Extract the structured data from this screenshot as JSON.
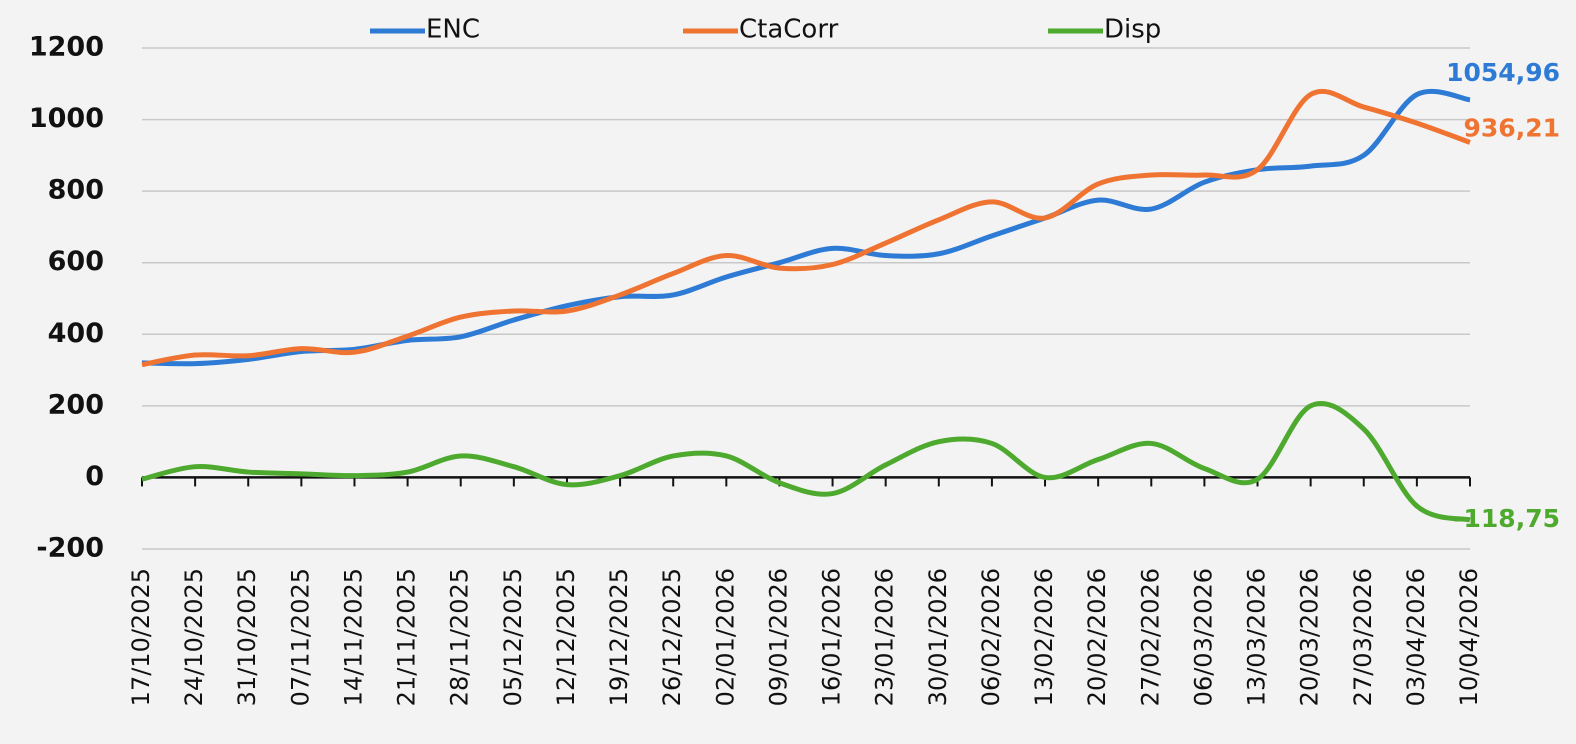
{
  "chart_data": {
    "type": "line",
    "categories": [
      "17/10/2025",
      "24/10/2025",
      "31/10/2025",
      "07/11/2025",
      "14/11/2025",
      "21/11/2025",
      "28/11/2025",
      "05/12/2025",
      "12/12/2025",
      "19/12/2025",
      "26/12/2025",
      "02/01/2026",
      "09/01/2026",
      "16/01/2026",
      "23/01/2026",
      "30/01/2026",
      "06/02/2026",
      "13/02/2026",
      "20/02/2026",
      "27/02/2026",
      "06/03/2026",
      "13/03/2026",
      "20/03/2026",
      "27/03/2026",
      "03/04/2026",
      "10/04/2026"
    ],
    "series": [
      {
        "name": "ENC",
        "color": "#2e7bd6",
        "values": [
          320,
          318,
          330,
          352,
          358,
          383,
          393,
          440,
          480,
          505,
          510,
          560,
          600,
          640,
          620,
          625,
          675,
          725,
          775,
          750,
          825,
          860,
          870,
          900,
          1070,
          1054.96
        ],
        "value_labels": [
          null,
          null,
          null,
          null,
          null,
          null,
          null,
          null,
          null,
          null,
          null,
          null,
          null,
          null,
          null,
          null,
          null,
          null,
          null,
          null,
          null,
          null,
          null,
          null,
          null,
          "1054,96"
        ]
      },
      {
        "name": "CtaCorr",
        "color": "#ef7432",
        "values": [
          315,
          342,
          340,
          360,
          350,
          395,
          448,
          465,
          465,
          510,
          570,
          620,
          585,
          595,
          655,
          720,
          770,
          725,
          820,
          845,
          845,
          860,
          1070,
          1035,
          990,
          936.21
        ],
        "value_labels": [
          null,
          null,
          null,
          null,
          null,
          null,
          null,
          null,
          null,
          null,
          null,
          null,
          null,
          null,
          null,
          null,
          null,
          null,
          null,
          null,
          null,
          null,
          null,
          null,
          null,
          "936,21"
        ]
      },
      {
        "name": "Disp",
        "color": "#4eaa2f",
        "values": [
          -5,
          30,
          15,
          10,
          5,
          15,
          60,
          30,
          -20,
          5,
          60,
          60,
          -15,
          -45,
          35,
          100,
          95,
          0,
          50,
          95,
          25,
          -5,
          200,
          135,
          -80,
          -118.75
        ],
        "value_labels": [
          null,
          null,
          null,
          null,
          null,
          null,
          null,
          null,
          null,
          null,
          null,
          null,
          null,
          null,
          null,
          null,
          null,
          null,
          null,
          null,
          null,
          null,
          null,
          null,
          null,
          "-118,75"
        ]
      }
    ],
    "ylim": [
      -200,
      1200
    ],
    "yticks": [
      -200,
      0,
      200,
      400,
      600,
      800,
      1000,
      1200
    ],
    "grid": true,
    "legend": "top"
  }
}
